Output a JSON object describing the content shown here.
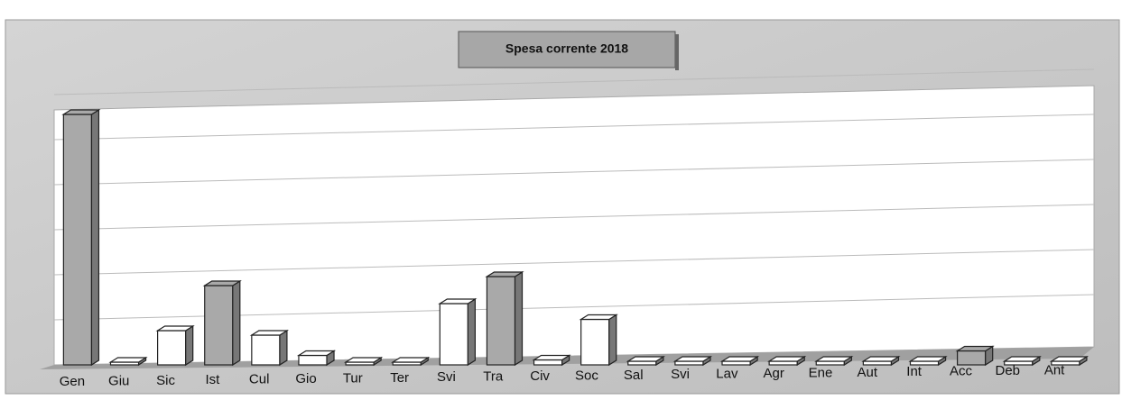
{
  "chart_data": {
    "type": "bar3d",
    "title": "Spesa corrente 2018",
    "categories": [
      "Gen",
      "Giu",
      "Sic",
      "Ist",
      "Cul",
      "Gio",
      "Tur",
      "Ter",
      "Svi",
      "Tra",
      "Civ",
      "Soc",
      "Sal",
      "Svi",
      "Lav",
      "Agr",
      "Ene",
      "Aut",
      "Int",
      "Acc",
      "Deb",
      "Ant"
    ],
    "values": [
      5.5,
      0,
      0.7,
      1.7,
      0.6,
      0.15,
      0,
      0,
      1.3,
      1.9,
      0.05,
      0.95,
      0.02,
      0.02,
      0.02,
      0.02,
      0.02,
      0.02,
      0.02,
      0.25,
      0.02,
      0.02
    ],
    "colors": [
      "#a9a9a9",
      "#ffffff",
      "#ffffff",
      "#a9a9a9",
      "#ffffff",
      "#ffffff",
      "#ffffff",
      "#ffffff",
      "#ffffff",
      "#a9a9a9",
      "#ffffff",
      "#ffffff",
      "#ffffff",
      "#ffffff",
      "#ffffff",
      "#ffffff",
      "#ffffff",
      "#ffffff",
      "#ffffff",
      "#a9a9a9",
      "#ffffff",
      "#ffffff"
    ],
    "ylim": [
      0,
      6
    ],
    "yticks": [
      0,
      1,
      2,
      3,
      4,
      5,
      6
    ],
    "grid": true
  }
}
